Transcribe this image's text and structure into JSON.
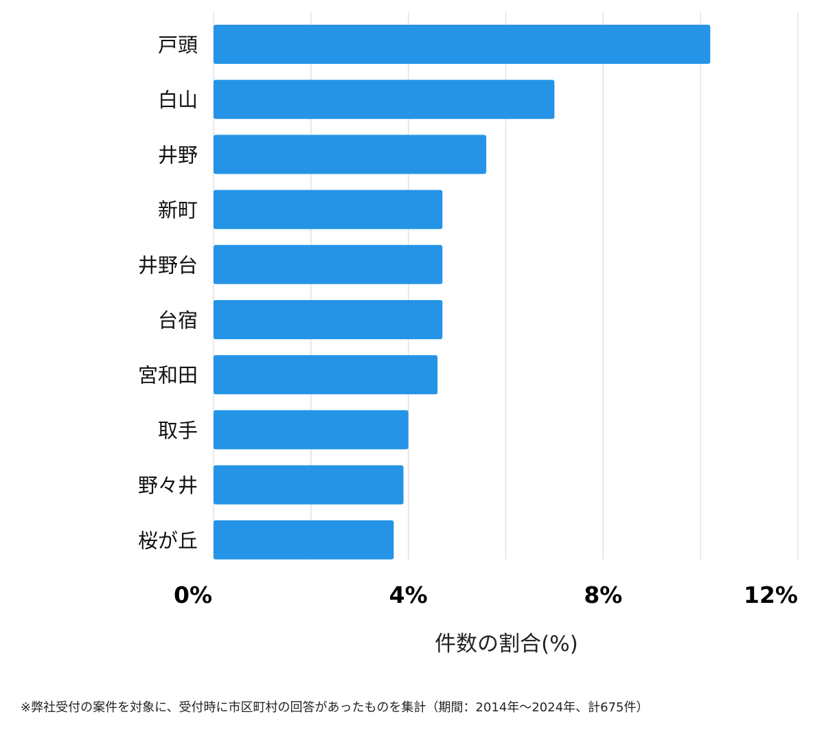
{
  "chart_data": {
    "type": "bar",
    "orientation": "horizontal",
    "categories": [
      "戸頭",
      "白山",
      "井野",
      "新町",
      "井野台",
      "台宿",
      "宮和田",
      "取手",
      "野々井",
      "桜が丘"
    ],
    "values": [
      10.2,
      7.0,
      5.6,
      4.7,
      4.7,
      4.7,
      4.6,
      4.0,
      3.9,
      3.7
    ],
    "xlim": [
      0,
      12
    ],
    "xticks": [
      0,
      4,
      8,
      12
    ],
    "xtick_labels": [
      "0%",
      "4%",
      "8%",
      "12%"
    ],
    "minor_gridlines": [
      2,
      6,
      10
    ],
    "xlabel": "件数の割合(%)",
    "ylabel": "",
    "title": "",
    "grid": true,
    "bar_color": "#2594e6"
  },
  "footnote": "※弊社受付の案件を対象に、受付時に市区町村の回答があったものを集計（期間：2014年〜2024年、計675件）"
}
